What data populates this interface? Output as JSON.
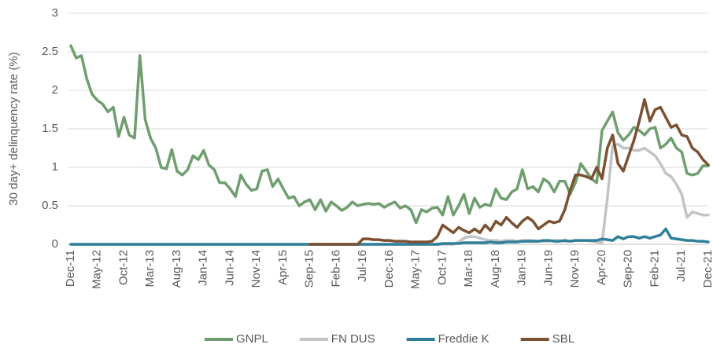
{
  "chart_data": {
    "type": "line",
    "y_label": "30 day+ delinquency rate (%)",
    "categories": [
      "Dec-11",
      null,
      null,
      null,
      null,
      "May-12",
      null,
      null,
      null,
      null,
      "Oct-12",
      null,
      null,
      null,
      null,
      "Mar-13",
      null,
      null,
      null,
      null,
      "Aug-13",
      null,
      null,
      null,
      null,
      "Jan-14",
      null,
      null,
      null,
      null,
      "Jun-14",
      null,
      null,
      null,
      null,
      "Nov-14",
      null,
      null,
      null,
      null,
      "Apr-15",
      null,
      null,
      null,
      null,
      "Sep-15",
      null,
      null,
      null,
      null,
      "Feb-16",
      null,
      null,
      null,
      null,
      "Jul-16",
      null,
      null,
      null,
      null,
      "Dec-16",
      null,
      null,
      null,
      null,
      "May-17",
      null,
      null,
      null,
      null,
      "Oct-17",
      null,
      null,
      null,
      null,
      "Mar-18",
      null,
      null,
      null,
      null,
      "Aug-18",
      null,
      null,
      null,
      null,
      "Jan-19",
      null,
      null,
      null,
      null,
      "Jun-19",
      null,
      null,
      null,
      null,
      "Nov-19",
      null,
      null,
      null,
      null,
      "Apr-20",
      null,
      null,
      null,
      null,
      "Sep-20",
      null,
      null,
      null,
      null,
      "Feb-21",
      null,
      null,
      null,
      null,
      "Jul-21",
      null,
      null,
      null,
      null,
      "Dec-21"
    ],
    "series": [
      {
        "name": "GNPL",
        "color": "#6f9e6f",
        "values": [
          2.58,
          2.42,
          2.45,
          2.15,
          1.95,
          1.87,
          1.82,
          1.72,
          1.78,
          1.4,
          1.65,
          1.42,
          1.38,
          2.45,
          1.62,
          1.38,
          1.25,
          1.0,
          0.98,
          1.23,
          0.95,
          0.9,
          0.97,
          1.15,
          1.1,
          1.22,
          1.03,
          0.97,
          0.8,
          0.8,
          0.72,
          0.62,
          0.9,
          0.78,
          0.7,
          0.72,
          0.95,
          0.97,
          0.75,
          0.85,
          0.72,
          0.6,
          0.62,
          0.5,
          0.55,
          0.58,
          0.45,
          0.58,
          0.43,
          0.55,
          0.5,
          0.44,
          0.48,
          0.55,
          0.5,
          0.52,
          0.53,
          0.52,
          0.53,
          0.48,
          0.52,
          0.55,
          0.47,
          0.5,
          0.45,
          0.28,
          0.45,
          0.42,
          0.47,
          0.48,
          0.38,
          0.62,
          0.38,
          0.5,
          0.65,
          0.4,
          0.6,
          0.48,
          0.52,
          0.5,
          0.72,
          0.6,
          0.58,
          0.68,
          0.72,
          0.97,
          0.72,
          0.75,
          0.68,
          0.85,
          0.8,
          0.68,
          0.82,
          0.82,
          0.65,
          0.8,
          1.05,
          0.95,
          0.85,
          0.8,
          1.48,
          1.6,
          1.72,
          1.45,
          1.35,
          1.42,
          1.52,
          1.48,
          1.42,
          1.5,
          1.52,
          1.25,
          1.3,
          1.38,
          1.25,
          1.2,
          0.92,
          0.9,
          0.92,
          1.02,
          1.02
        ]
      },
      {
        "name": "FN DUS",
        "color": "#c3c3c3",
        "values": [
          0,
          0,
          0,
          0,
          0,
          0,
          0,
          0,
          0,
          0,
          0,
          0,
          0,
          0,
          0,
          0,
          0,
          0,
          0,
          0,
          0,
          0,
          0,
          0,
          0,
          0,
          0,
          0,
          0,
          0,
          0,
          0,
          0,
          0,
          0,
          0,
          0,
          0,
          0,
          0,
          0,
          0,
          0,
          0,
          0,
          0,
          0,
          0,
          0,
          0,
          0,
          0,
          0,
          0,
          0,
          0,
          0,
          0,
          0,
          0,
          0,
          0,
          0,
          0,
          0,
          0,
          0,
          0,
          0,
          0,
          0,
          0,
          0,
          0.03,
          0.08,
          0.1,
          0.1,
          0.08,
          0.06,
          0.05,
          0.05,
          0.04,
          0.05,
          0.05,
          0.04,
          0.05,
          0.05,
          0.05,
          0.04,
          0.04,
          0.04,
          0.05,
          0.05,
          0.04,
          0.04,
          0.05,
          0.05,
          0.05,
          0.04,
          0.03,
          0.02,
          0.6,
          1.28,
          1.3,
          1.25,
          1.25,
          1.22,
          1.22,
          1.25,
          1.2,
          1.15,
          1.05,
          0.92,
          0.88,
          0.78,
          0.65,
          0.35,
          0.42,
          0.4,
          0.38,
          0.38
        ]
      },
      {
        "name": "Freddie K",
        "color": "#2f7f9b",
        "values": [
          0,
          0,
          0,
          0,
          0,
          0,
          0,
          0,
          0,
          0,
          0,
          0,
          0,
          0,
          0,
          0,
          0,
          0,
          0,
          0,
          0,
          0,
          0,
          0,
          0,
          0,
          0,
          0,
          0,
          0,
          0,
          0,
          0,
          0,
          0,
          0,
          0,
          0,
          0,
          0,
          0,
          0,
          0,
          0,
          0,
          0,
          0,
          0,
          0,
          0,
          0,
          0,
          0,
          0,
          0,
          0,
          0,
          0,
          0,
          0,
          0,
          0,
          0,
          0,
          0,
          0,
          0,
          0,
          0,
          0,
          0.01,
          0.01,
          0.01,
          0.01,
          0.02,
          0.02,
          0.02,
          0.02,
          0.02,
          0.03,
          0.02,
          0.02,
          0.03,
          0.03,
          0.03,
          0.04,
          0.04,
          0.04,
          0.04,
          0.05,
          0.05,
          0.04,
          0.04,
          0.05,
          0.04,
          0.05,
          0.05,
          0.05,
          0.05,
          0.05,
          0.07,
          0.06,
          0.05,
          0.1,
          0.07,
          0.1,
          0.1,
          0.08,
          0.1,
          0.08,
          0.1,
          0.12,
          0.2,
          0.08,
          0.07,
          0.06,
          0.05,
          0.05,
          0.04,
          0.04,
          0.03
        ]
      },
      {
        "name": "SBL",
        "color": "#7c5132",
        "values": [
          null,
          null,
          null,
          null,
          null,
          null,
          null,
          null,
          null,
          null,
          null,
          null,
          null,
          null,
          null,
          null,
          null,
          null,
          null,
          null,
          null,
          null,
          null,
          null,
          null,
          null,
          null,
          null,
          null,
          null,
          null,
          null,
          null,
          null,
          null,
          null,
          null,
          null,
          null,
          null,
          null,
          null,
          null,
          null,
          null,
          0,
          0,
          0,
          0,
          0,
          0,
          0,
          0,
          0,
          0,
          0.07,
          0.07,
          0.06,
          0.06,
          0.05,
          0.05,
          0.04,
          0.04,
          0.04,
          0.03,
          0.03,
          0.03,
          0.03,
          0.04,
          0.1,
          0.25,
          0.2,
          0.15,
          0.22,
          0.18,
          0.15,
          0.2,
          0.15,
          0.25,
          0.18,
          0.3,
          0.25,
          0.35,
          0.28,
          0.22,
          0.3,
          0.35,
          0.3,
          0.2,
          0.25,
          0.3,
          0.28,
          0.3,
          0.45,
          0.7,
          0.9,
          0.9,
          0.88,
          0.85,
          1.0,
          0.85,
          1.25,
          1.42,
          1.05,
          0.95,
          1.15,
          1.35,
          1.6,
          1.88,
          1.6,
          1.75,
          1.78,
          1.65,
          1.52,
          1.55,
          1.42,
          1.4,
          1.25,
          1.2,
          1.1,
          1.03
        ]
      }
    ],
    "ylim": [
      0,
      3
    ],
    "yticks": [
      0,
      0.5,
      1,
      1.5,
      2,
      2.5,
      3
    ],
    "grid": true,
    "legend": "bottom"
  }
}
